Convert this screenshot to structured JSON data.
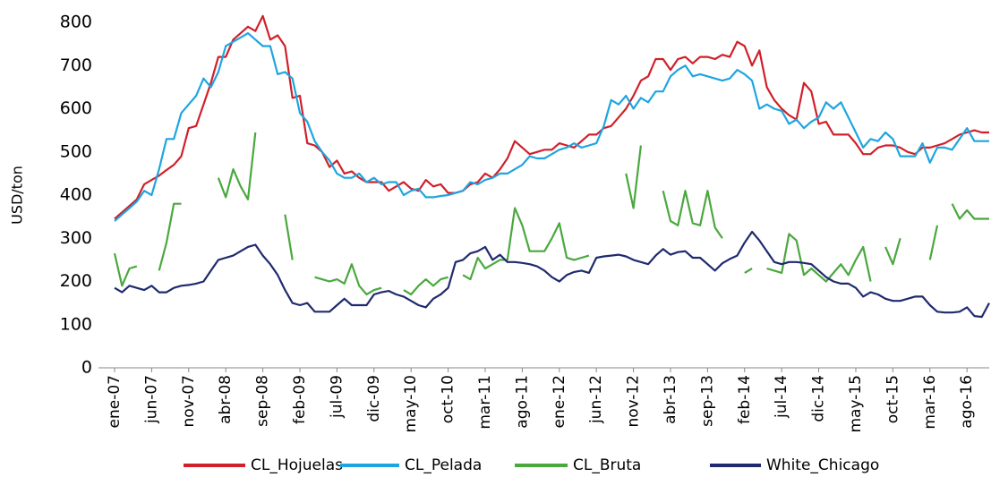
{
  "chart_data": {
    "type": "line",
    "y_label": "USD/ton",
    "ylim": [
      0,
      800
    ],
    "yticks": [
      0,
      100,
      200,
      300,
      400,
      500,
      600,
      700,
      800
    ],
    "legend": "bottom",
    "categories": [
      "ene-07",
      null,
      null,
      null,
      null,
      "jun-07",
      null,
      null,
      null,
      null,
      "nov-07",
      null,
      null,
      null,
      null,
      "abr-08",
      null,
      null,
      null,
      null,
      "sep-08",
      null,
      null,
      null,
      null,
      "feb-09",
      null,
      null,
      null,
      null,
      "jul-09",
      null,
      null,
      null,
      null,
      "dic-09",
      null,
      null,
      null,
      null,
      "may-10",
      null,
      null,
      null,
      null,
      "oct-10",
      null,
      null,
      null,
      null,
      "mar-11",
      null,
      null,
      null,
      null,
      "ago-11",
      null,
      null,
      null,
      null,
      "ene-12",
      null,
      null,
      null,
      null,
      "jun-12",
      null,
      null,
      null,
      null,
      "nov-12",
      null,
      null,
      null,
      null,
      "abr-13",
      null,
      null,
      null,
      null,
      "sep-13",
      null,
      null,
      null,
      null,
      "feb-14",
      null,
      null,
      null,
      null,
      "jul-14",
      null,
      null,
      null,
      null,
      "dic-14",
      null,
      null,
      null,
      null,
      "may-15",
      null,
      null,
      null,
      null,
      "oct-15",
      null,
      null,
      null,
      null,
      "mar-16",
      null,
      null,
      null,
      null,
      "ago-16",
      null,
      null,
      null
    ],
    "series": [
      {
        "name": "CL_Hojuelas",
        "color": "#d0202a",
        "values": [
          345,
          360,
          375,
          390,
          425,
          435,
          445,
          458,
          470,
          490,
          555,
          560,
          610,
          660,
          720,
          720,
          760,
          775,
          790,
          780,
          815,
          760,
          770,
          745,
          625,
          630,
          520,
          515,
          500,
          465,
          480,
          450,
          455,
          440,
          430,
          430,
          430,
          410,
          420,
          430,
          415,
          410,
          435,
          420,
          425,
          405,
          405,
          410,
          425,
          430,
          450,
          440,
          460,
          485,
          525,
          510,
          495,
          500,
          505,
          505,
          520,
          515,
          510,
          525,
          540,
          540,
          555,
          560,
          580,
          600,
          630,
          665,
          675,
          715,
          715,
          690,
          715,
          720,
          705,
          720,
          720,
          715,
          725,
          720,
          755,
          745,
          700,
          735,
          650,
          620,
          600,
          585,
          575,
          660,
          640,
          565,
          570,
          540,
          540,
          540,
          520,
          495,
          495,
          510,
          515,
          515,
          510,
          500,
          495,
          510,
          510,
          515,
          520,
          530,
          540,
          545,
          550,
          545,
          545
        ]
      },
      {
        "name": "CL_Pelada",
        "color": "#1ea5e0",
        "values": [
          340,
          355,
          370,
          385,
          410,
          400,
          460,
          530,
          530,
          590,
          610,
          630,
          670,
          650,
          685,
          745,
          755,
          765,
          775,
          760,
          745,
          745,
          680,
          685,
          670,
          590,
          570,
          525,
          500,
          480,
          450,
          440,
          440,
          450,
          430,
          440,
          425,
          430,
          430,
          400,
          410,
          415,
          395,
          395,
          398,
          400,
          405,
          410,
          430,
          425,
          435,
          440,
          450,
          450,
          460,
          470,
          490,
          485,
          485,
          495,
          505,
          510,
          520,
          510,
          515,
          520,
          560,
          620,
          610,
          630,
          600,
          625,
          615,
          640,
          640,
          675,
          690,
          700,
          675,
          680,
          675,
          670,
          665,
          670,
          690,
          680,
          665,
          600,
          610,
          600,
          595,
          565,
          575,
          555,
          570,
          580,
          615,
          600,
          615,
          580,
          545,
          510,
          530,
          525,
          545,
          530,
          490,
          490,
          490,
          520,
          475,
          510,
          510,
          505,
          530,
          555,
          525,
          525,
          525
        ]
      },
      {
        "name": "CL_Bruta",
        "color": "#4aa83e",
        "values": [
          265,
          190,
          230,
          235,
          null,
          null,
          225,
          290,
          380,
          380,
          null,
          null,
          null,
          null,
          440,
          395,
          460,
          420,
          390,
          545,
          null,
          null,
          null,
          355,
          250,
          null,
          null,
          210,
          205,
          200,
          205,
          195,
          240,
          190,
          170,
          180,
          185,
          null,
          null,
          180,
          170,
          190,
          205,
          190,
          205,
          210,
          null,
          215,
          205,
          255,
          230,
          240,
          250,
          250,
          370,
          330,
          270,
          270,
          270,
          300,
          335,
          255,
          250,
          255,
          260,
          null,
          null,
          null,
          null,
          450,
          370,
          515,
          null,
          null,
          410,
          340,
          330,
          410,
          335,
          330,
          410,
          325,
          300,
          null,
          null,
          220,
          230,
          null,
          230,
          225,
          220,
          310,
          295,
          215,
          230,
          215,
          200,
          220,
          240,
          215,
          250,
          280,
          200,
          null,
          280,
          240,
          300,
          null,
          null,
          null,
          250,
          330,
          null,
          380,
          345,
          365,
          345,
          345,
          345
        ]
      },
      {
        "name": "White_Chicago",
        "color": "#1f2a6e",
        "values": [
          185,
          175,
          190,
          185,
          180,
          190,
          175,
          175,
          185,
          190,
          192,
          195,
          200,
          225,
          250,
          255,
          260,
          270,
          280,
          285,
          260,
          240,
          215,
          180,
          150,
          145,
          150,
          130,
          130,
          130,
          145,
          160,
          145,
          145,
          145,
          170,
          175,
          178,
          170,
          165,
          155,
          145,
          140,
          160,
          170,
          185,
          245,
          250,
          265,
          270,
          280,
          250,
          262,
          245,
          245,
          243,
          240,
          235,
          225,
          210,
          200,
          215,
          222,
          225,
          220,
          255,
          258,
          260,
          262,
          258,
          250,
          245,
          240,
          260,
          275,
          262,
          268,
          270,
          255,
          255,
          240,
          225,
          242,
          252,
          260,
          290,
          315,
          295,
          270,
          245,
          240,
          245,
          245,
          243,
          240,
          225,
          210,
          200,
          195,
          195,
          185,
          165,
          175,
          170,
          160,
          155,
          155,
          160,
          165,
          165,
          145,
          130,
          128,
          128,
          130,
          140,
          120,
          118,
          150
        ]
      }
    ]
  }
}
